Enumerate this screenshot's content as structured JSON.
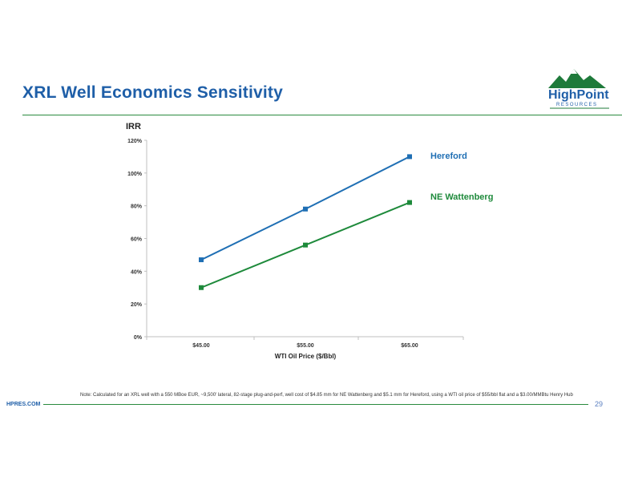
{
  "slide": {
    "title": "XRL Well Economics Sensitivity",
    "logo_name": "HighPoint",
    "logo_sub": "RESOURCES",
    "footer_site": "HPRES.COM",
    "page_number": "29",
    "note": "Note: Calculated for an XRL well with a 550 MBoe EUR, ~9,500' lateral, 82-stage plug-and-perf, well cost of $4.85 mm for NE Wattenberg and $5.1 mm for Hereford, using a WTI oil price of $55/bbl flat and a $3.00/MMBtu Henry Hub"
  },
  "colors": {
    "hereford": "#1f6fb4",
    "ne_wattenberg": "#1e8a3b",
    "title": "#1f5fa8",
    "rule": "#2a8a3e"
  },
  "chart_data": {
    "type": "line",
    "title": "IRR",
    "xlabel": "WTI Oil Price ($/Bbl)",
    "ylabel": "IRR",
    "categories": [
      "$45.00",
      "$55.00",
      "$65.00"
    ],
    "yticks": [
      "0%",
      "20%",
      "40%",
      "60%",
      "80%",
      "100%",
      "120%"
    ],
    "ylim": [
      0,
      120
    ],
    "series": [
      {
        "name": "Hereford",
        "values": [
          47,
          78,
          110
        ]
      },
      {
        "name": "NE Wattenberg",
        "values": [
          30,
          56,
          82
        ]
      }
    ],
    "grid": false,
    "legend": "inline-right"
  }
}
